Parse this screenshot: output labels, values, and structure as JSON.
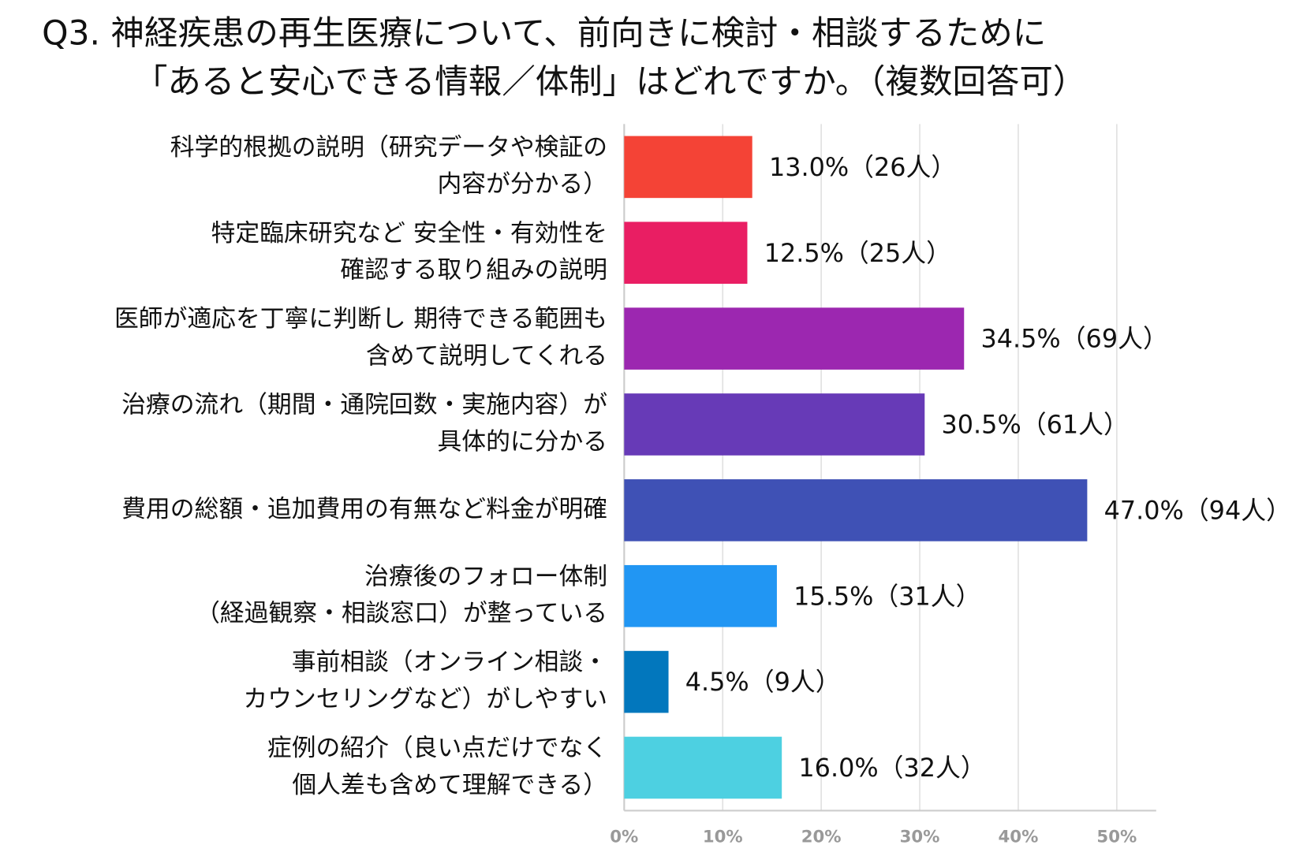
{
  "chart_data": {
    "type": "bar",
    "orientation": "horizontal",
    "title": [
      "Q3. 神経疾患の再生医療について、前向きに検討・相談するために",
      "「あると安心できる情報／体制」はどれですか。（複数回答可）"
    ],
    "categories": [
      [
        "科学的根拠の説明（研究データや検証の",
        "内容が分かる）"
      ],
      [
        "特定臨床研究など 安全性・有効性を",
        "確認する取り組みの説明"
      ],
      [
        "医師が適応を丁寧に判断し 期待できる範囲も",
        "含めて説明してくれる"
      ],
      [
        "治療の流れ（期間・通院回数・実施内容）が",
        "具体的に分かる"
      ],
      [
        "費用の総額・追加費用の有無など料金が明確"
      ],
      [
        "治療後のフォロー体制",
        "（経過観察・相談窓口）が整っている"
      ],
      [
        "事前相談（オンライン相談・",
        "カウンセリングなど）がしやすい"
      ],
      [
        "症例の紹介（良い点だけでなく",
        "個人差も含めて理解できる）"
      ]
    ],
    "values": [
      13.0,
      12.5,
      34.5,
      30.5,
      47.0,
      15.5,
      4.5,
      16.0
    ],
    "value_labels": [
      "13.0%（26人）",
      "12.5%（25人）",
      "34.5%（69人）",
      "30.5%（61人）",
      "47.0%（94人）",
      "15.5%（31人）",
      "4.5%（9人）",
      "16.0%（32人）"
    ],
    "colors": [
      "#f44336",
      "#e91e63",
      "#9c27b0",
      "#673ab7",
      "#3f51b5",
      "#2196f3",
      "#0277bd",
      "#4dd0e1"
    ],
    "xlim": [
      0,
      54
    ],
    "xticks": [
      {
        "value": 0,
        "label": "0%"
      },
      {
        "value": 10,
        "label": "10%"
      },
      {
        "value": 20,
        "label": "20%"
      },
      {
        "value": 30,
        "label": "30%"
      },
      {
        "value": 40,
        "label": "40%"
      },
      {
        "value": 50,
        "label": "50%"
      }
    ],
    "grid": true
  }
}
